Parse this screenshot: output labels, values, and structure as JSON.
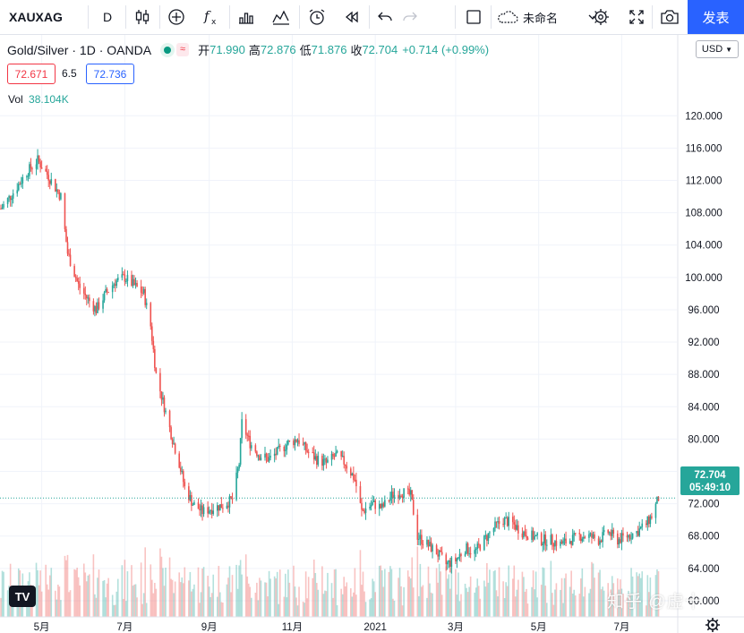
{
  "toolbar": {
    "symbol": "XAUXAG",
    "interval": "D",
    "template_name": "未命名",
    "publish_label": "发表"
  },
  "legend": {
    "title": "Gold/Silver · 1D · OANDA",
    "open_label": "开",
    "open": "71.990",
    "high_label": "高",
    "high": "72.876",
    "low_label": "低",
    "low": "71.876",
    "close_label": "收",
    "close": "72.704",
    "change": "+0.714 (+0.99%)",
    "bid": "72.671",
    "spread": "6.5",
    "ask": "72.736",
    "vol_label": "Vol",
    "vol_value": "38.104K"
  },
  "currency": "USD",
  "watermark": "知乎 @虚十",
  "colors": {
    "up": "#26a69a",
    "down": "#ef5350",
    "accent": "#2962ff",
    "grid": "#f0f3fa"
  },
  "icons": [
    "candles-icon",
    "add-indicator-icon",
    "function-icon",
    "bar-chart-icon",
    "line-chart-icon",
    "alarm-icon",
    "replay-icon",
    "undo-icon",
    "redo-icon",
    "layout-icon",
    "cloud-icon",
    "chevron-down-icon",
    "gear-icon",
    "fullscreen-icon",
    "camera-icon",
    "tradingview-logo-icon",
    "settings-gear-icon"
  ],
  "chart_data": {
    "type": "candlestick",
    "title": "Gold/Silver · 1D · OANDA",
    "ylim": [
      58,
      130
    ],
    "yticks": [
      "60.000",
      "64.000",
      "68.000",
      "72.000",
      "76.000",
      "80.000",
      "84.000",
      "88.000",
      "92.000",
      "96.000",
      "100.000",
      "104.000",
      "108.000",
      "112.000",
      "116.000",
      "120.000"
    ],
    "xticks": [
      {
        "label": "5月",
        "date": "2020-05-01"
      },
      {
        "label": "7月",
        "date": "2020-07-01"
      },
      {
        "label": "9月",
        "date": "2020-09-01"
      },
      {
        "label": "11月",
        "date": "2020-11-01"
      },
      {
        "label": "2021",
        "date": "2021-01-01"
      },
      {
        "label": "3月",
        "date": "2021-03-01"
      },
      {
        "label": "5月",
        "date": "2021-05-01"
      },
      {
        "label": "7月",
        "date": "2021-07-01"
      }
    ],
    "last_price": "72.704",
    "countdown": "05:49:10",
    "series": [
      {
        "date": "2020-04-01",
        "close": 108.5
      },
      {
        "date": "2020-04-10",
        "close": 110.5
      },
      {
        "date": "2020-04-20",
        "close": 113.0
      },
      {
        "date": "2020-04-28",
        "close": 114.5
      },
      {
        "date": "2020-05-06",
        "close": 112.5
      },
      {
        "date": "2020-05-15",
        "close": 110.0
      },
      {
        "date": "2020-05-20",
        "close": 103.0
      },
      {
        "date": "2020-05-28",
        "close": 99.0
      },
      {
        "date": "2020-06-03",
        "close": 97.5
      },
      {
        "date": "2020-06-10",
        "close": 96.0
      },
      {
        "date": "2020-06-17",
        "close": 98.0
      },
      {
        "date": "2020-06-24",
        "close": 99.5
      },
      {
        "date": "2020-07-01",
        "close": 100.0
      },
      {
        "date": "2020-07-08",
        "close": 99.0
      },
      {
        "date": "2020-07-15",
        "close": 98.0
      },
      {
        "date": "2020-07-20",
        "close": 94.0
      },
      {
        "date": "2020-07-24",
        "close": 88.0
      },
      {
        "date": "2020-07-30",
        "close": 84.0
      },
      {
        "date": "2020-08-05",
        "close": 80.0
      },
      {
        "date": "2020-08-10",
        "close": 77.0
      },
      {
        "date": "2020-08-14",
        "close": 74.0
      },
      {
        "date": "2020-08-20",
        "close": 72.0
      },
      {
        "date": "2020-08-27",
        "close": 71.0
      },
      {
        "date": "2020-09-04",
        "close": 71.5
      },
      {
        "date": "2020-09-11",
        "close": 71.8
      },
      {
        "date": "2020-09-18",
        "close": 72.5
      },
      {
        "date": "2020-09-23",
        "close": 77.0
      },
      {
        "date": "2020-09-25",
        "close": 82.0
      },
      {
        "date": "2020-10-01",
        "close": 79.5
      },
      {
        "date": "2020-10-08",
        "close": 78.0
      },
      {
        "date": "2020-10-15",
        "close": 77.5
      },
      {
        "date": "2020-10-22",
        "close": 78.5
      },
      {
        "date": "2020-10-29",
        "close": 79.5
      },
      {
        "date": "2020-11-05",
        "close": 80.0
      },
      {
        "date": "2020-11-12",
        "close": 78.5
      },
      {
        "date": "2020-11-19",
        "close": 77.5
      },
      {
        "date": "2020-11-26",
        "close": 77.0
      },
      {
        "date": "2020-12-03",
        "close": 78.0
      },
      {
        "date": "2020-12-10",
        "close": 77.0
      },
      {
        "date": "2020-12-17",
        "close": 75.0
      },
      {
        "date": "2020-12-22",
        "close": 71.0
      },
      {
        "date": "2020-12-30",
        "close": 72.0
      },
      {
        "date": "2021-01-06",
        "close": 71.5
      },
      {
        "date": "2021-01-13",
        "close": 73.0
      },
      {
        "date": "2021-01-20",
        "close": 73.5
      },
      {
        "date": "2021-01-27",
        "close": 73.0
      },
      {
        "date": "2021-02-01",
        "close": 68.0
      },
      {
        "date": "2021-02-08",
        "close": 67.0
      },
      {
        "date": "2021-02-15",
        "close": 66.0
      },
      {
        "date": "2021-02-22",
        "close": 64.5
      },
      {
        "date": "2021-03-01",
        "close": 65.0
      },
      {
        "date": "2021-03-08",
        "close": 66.5
      },
      {
        "date": "2021-03-15",
        "close": 66.0
      },
      {
        "date": "2021-03-22",
        "close": 67.5
      },
      {
        "date": "2021-03-29",
        "close": 69.0
      },
      {
        "date": "2021-04-05",
        "close": 70.0
      },
      {
        "date": "2021-04-12",
        "close": 69.5
      },
      {
        "date": "2021-04-19",
        "close": 68.5
      },
      {
        "date": "2021-04-26",
        "close": 68.0
      },
      {
        "date": "2021-05-03",
        "close": 67.5
      },
      {
        "date": "2021-05-10",
        "close": 67.5
      },
      {
        "date": "2021-05-17",
        "close": 67.0
      },
      {
        "date": "2021-05-24",
        "close": 67.5
      },
      {
        "date": "2021-05-31",
        "close": 68.0
      },
      {
        "date": "2021-06-07",
        "close": 68.0
      },
      {
        "date": "2021-06-14",
        "close": 67.5
      },
      {
        "date": "2021-06-21",
        "close": 68.5
      },
      {
        "date": "2021-06-28",
        "close": 67.5
      },
      {
        "date": "2021-07-05",
        "close": 68.0
      },
      {
        "date": "2021-07-12",
        "close": 68.5
      },
      {
        "date": "2021-07-19",
        "close": 69.5
      },
      {
        "date": "2021-07-23",
        "close": 70.5
      },
      {
        "date": "2021-07-28",
        "close": 72.7
      }
    ]
  }
}
